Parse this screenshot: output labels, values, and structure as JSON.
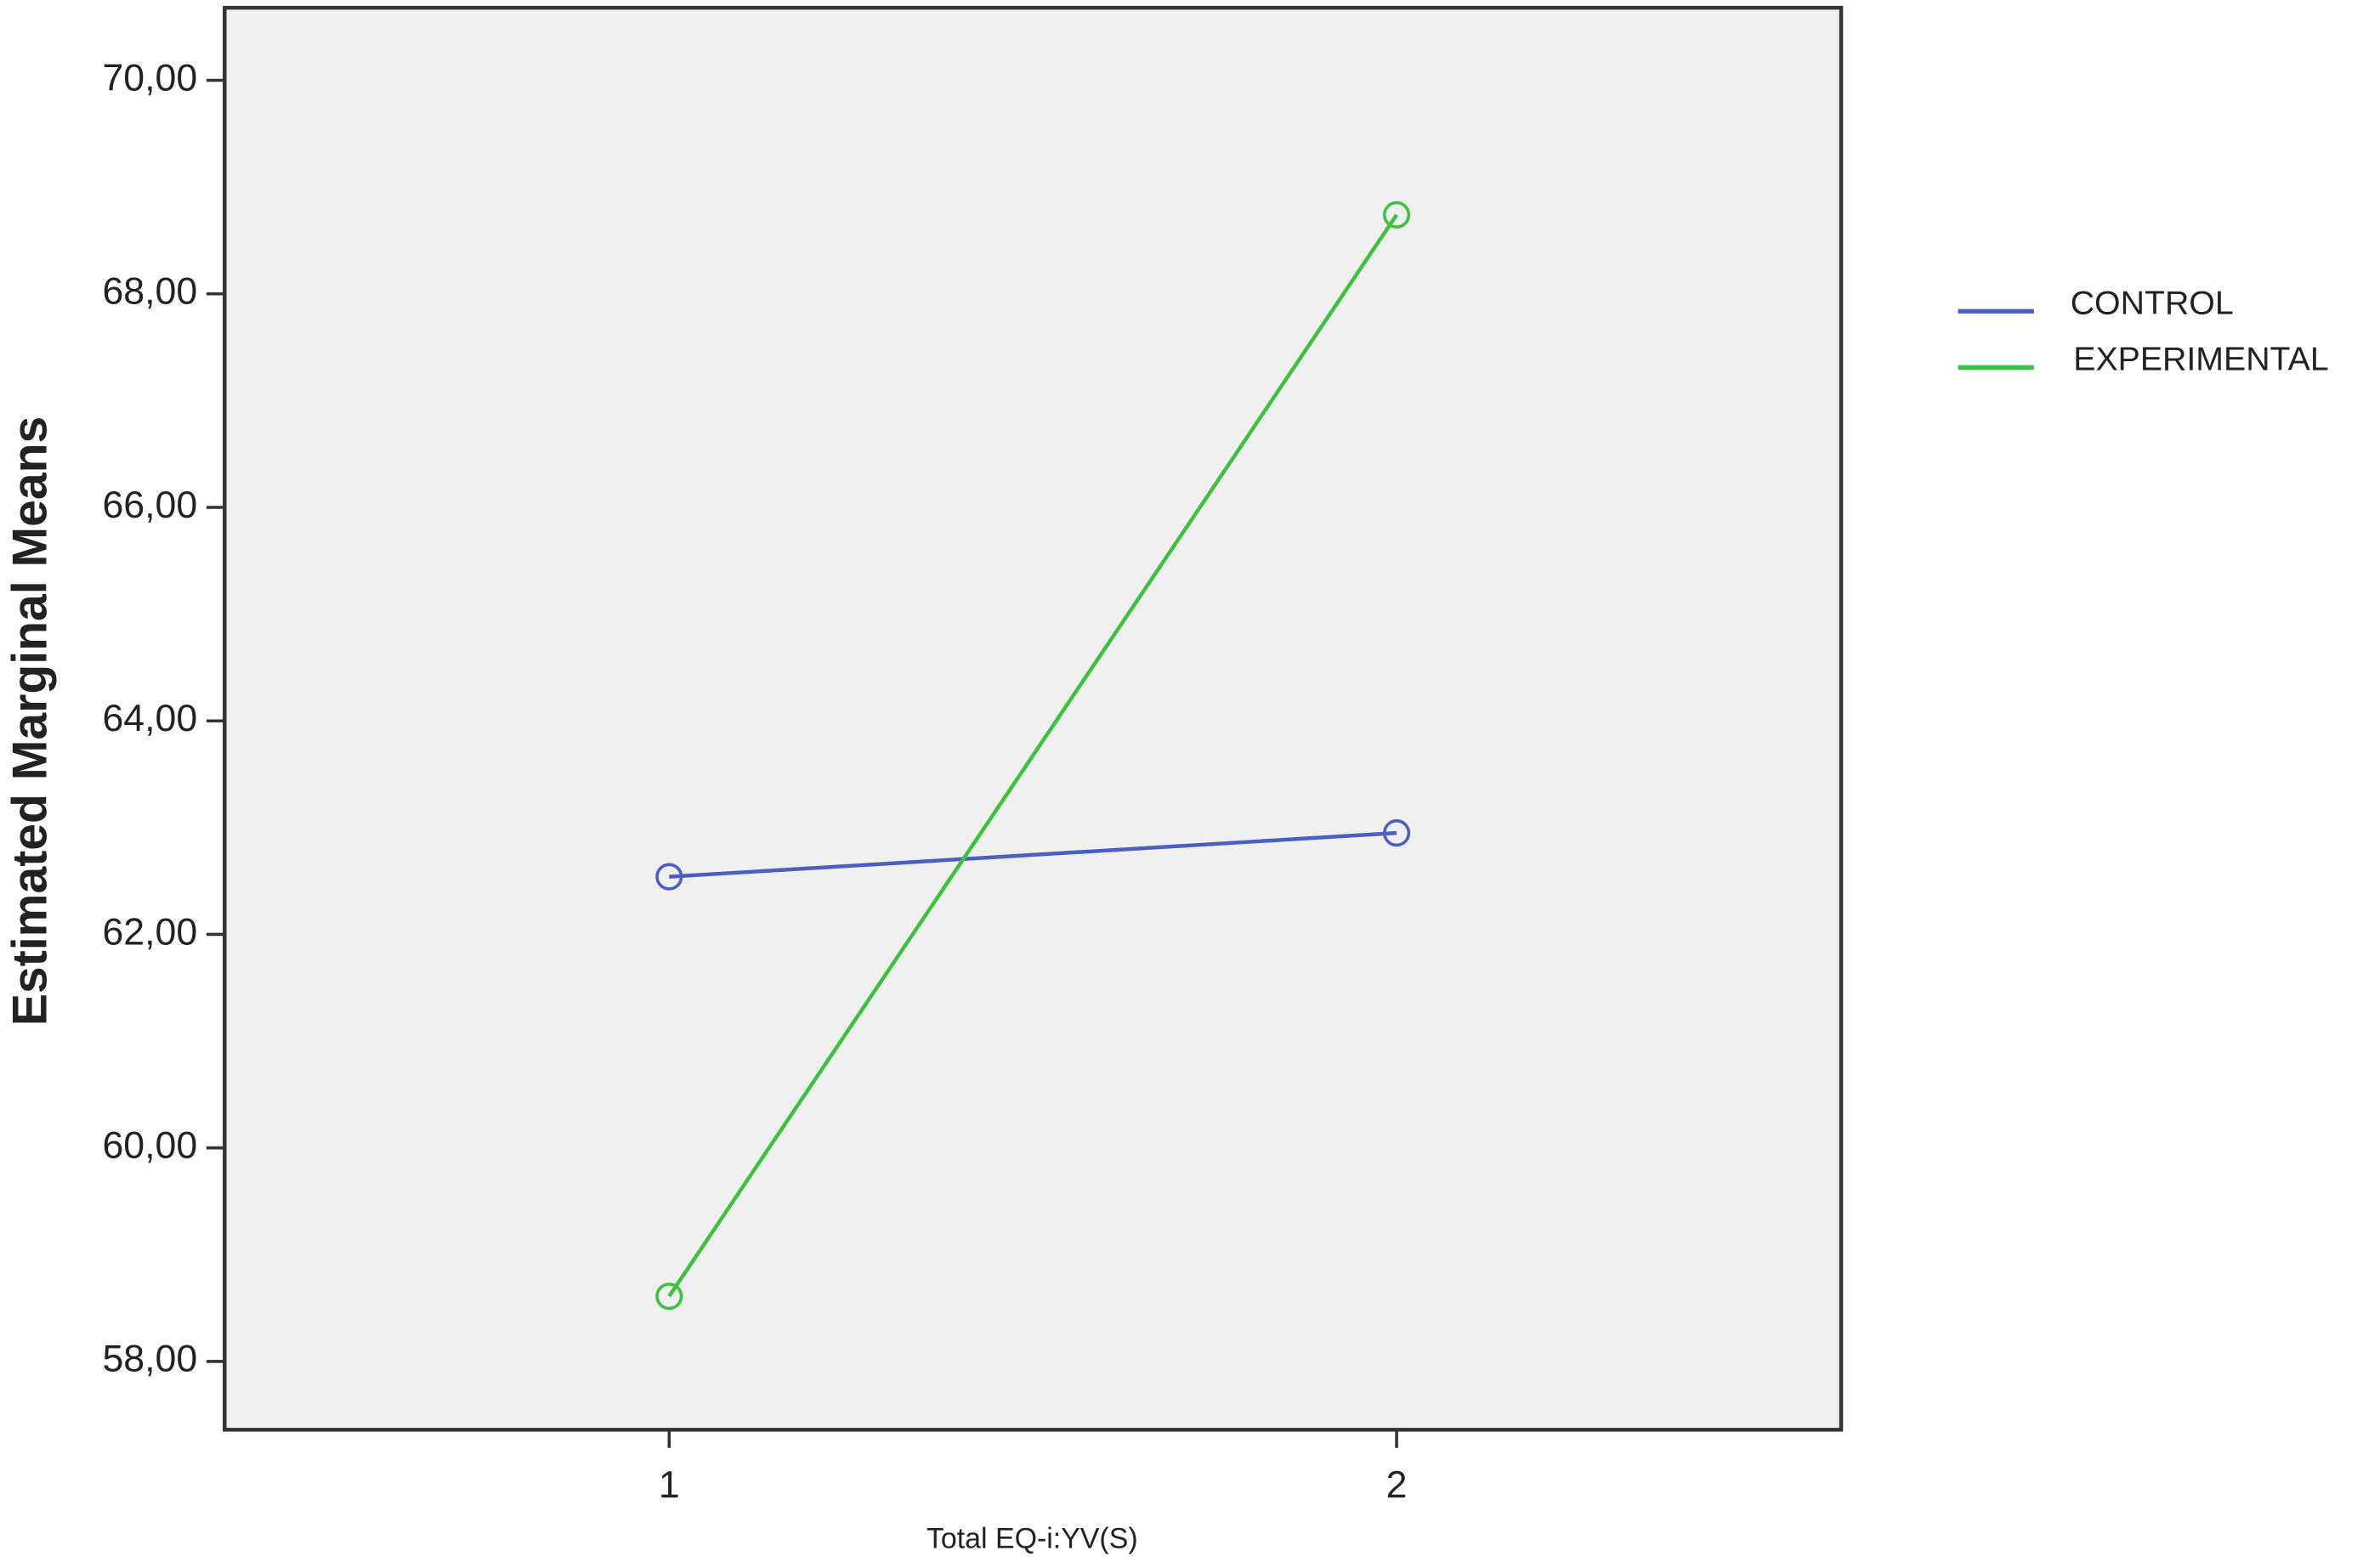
{
  "chart_data": {
    "type": "line",
    "xlabel": "Total EQ-i:YV(S)",
    "ylabel": "Estimated Marginal Means",
    "categories": [
      "1",
      "2"
    ],
    "series": [
      {
        "name": "CONTROL",
        "color": "#4a5fc1",
        "values": [
          62.54,
          62.95
        ]
      },
      {
        "name": "EXPERIMENTAL",
        "color": "#3cc23c",
        "values": [
          58.61,
          68.74
        ]
      }
    ],
    "ylim": [
      57.36,
      70.68
    ],
    "yticks": [
      {
        "value": 58,
        "label": "58,00"
      },
      {
        "value": 60,
        "label": "60,00"
      },
      {
        "value": 62,
        "label": "62,00"
      },
      {
        "value": 64,
        "label": "64,00"
      },
      {
        "value": 66,
        "label": "66,00"
      },
      {
        "value": 68,
        "label": "68,00"
      },
      {
        "value": 70,
        "label": "70,00"
      }
    ],
    "legend_position": "right"
  }
}
